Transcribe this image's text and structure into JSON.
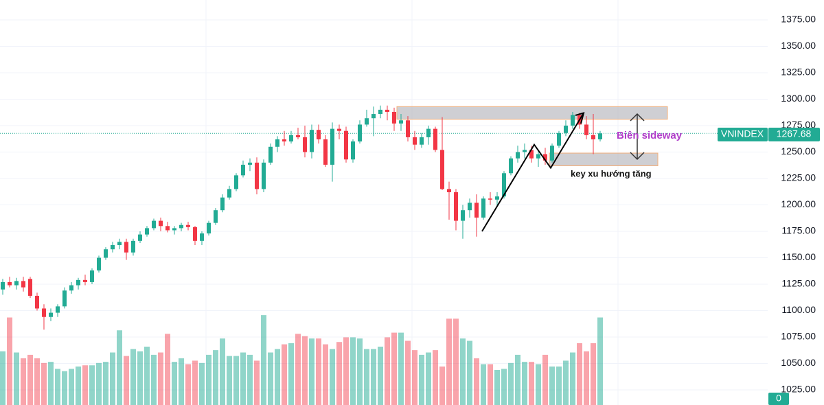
{
  "chart_data": {
    "type": "candlestick",
    "candles": [
      [
        1120,
        1130,
        1115,
        1127
      ],
      [
        1127,
        1132,
        1122,
        1124
      ],
      [
        1124,
        1131,
        1120,
        1128
      ],
      [
        1128,
        1132,
        1118,
        1122
      ],
      [
        1130,
        1132,
        1112,
        1114
      ],
      [
        1114,
        1117,
        1100,
        1102
      ],
      [
        1102,
        1106,
        1082,
        1094
      ],
      [
        1094,
        1102,
        1090,
        1098
      ],
      [
        1098,
        1106,
        1094,
        1104
      ],
      [
        1104,
        1122,
        1102,
        1119
      ],
      [
        1119,
        1127,
        1116,
        1124
      ],
      [
        1124,
        1131,
        1120,
        1129
      ],
      [
        1129,
        1134,
        1124,
        1127
      ],
      [
        1127,
        1140,
        1125,
        1138
      ],
      [
        1138,
        1152,
        1136,
        1150
      ],
      [
        1150,
        1160,
        1148,
        1158
      ],
      [
        1158,
        1165,
        1155,
        1162
      ],
      [
        1162,
        1168,
        1158,
        1165
      ],
      [
        1165,
        1168,
        1148,
        1155
      ],
      [
        1155,
        1168,
        1152,
        1166
      ],
      [
        1166,
        1175,
        1164,
        1172
      ],
      [
        1172,
        1180,
        1170,
        1178
      ],
      [
        1178,
        1187,
        1176,
        1185
      ],
      [
        1185,
        1188,
        1175,
        1180
      ],
      [
        1180,
        1184,
        1174,
        1176
      ],
      [
        1176,
        1180,
        1172,
        1178
      ],
      [
        1178,
        1183,
        1175,
        1181
      ],
      [
        1181,
        1184,
        1176,
        1179
      ],
      [
        1179,
        1180,
        1162,
        1166
      ],
      [
        1166,
        1175,
        1162,
        1173
      ],
      [
        1173,
        1185,
        1171,
        1183
      ],
      [
        1183,
        1197,
        1181,
        1195
      ],
      [
        1195,
        1210,
        1193,
        1207
      ],
      [
        1207,
        1218,
        1205,
        1215
      ],
      [
        1215,
        1230,
        1213,
        1228
      ],
      [
        1228,
        1242,
        1226,
        1238
      ],
      [
        1238,
        1244,
        1232,
        1240
      ],
      [
        1240,
        1245,
        1210,
        1215
      ],
      [
        1215,
        1243,
        1212,
        1240
      ],
      [
        1240,
        1258,
        1238,
        1255
      ],
      [
        1255,
        1265,
        1250,
        1262
      ],
      [
        1262,
        1270,
        1256,
        1260
      ],
      [
        1260,
        1270,
        1258,
        1266
      ],
      [
        1266,
        1273,
        1262,
        1264
      ],
      [
        1264,
        1275,
        1245,
        1250
      ],
      [
        1250,
        1276,
        1244,
        1271
      ],
      [
        1271,
        1276,
        1258,
        1262
      ],
      [
        1262,
        1266,
        1236,
        1238
      ],
      [
        1238,
        1278,
        1222,
        1272
      ],
      [
        1272,
        1276,
        1262,
        1270
      ],
      [
        1270,
        1274,
        1240,
        1243
      ],
      [
        1243,
        1262,
        1240,
        1260
      ],
      [
        1260,
        1280,
        1258,
        1276
      ],
      [
        1276,
        1290,
        1274,
        1282
      ],
      [
        1282,
        1293,
        1265,
        1286
      ],
      [
        1286,
        1294,
        1282,
        1290
      ],
      [
        1290,
        1294,
        1280,
        1288
      ],
      [
        1288,
        1292,
        1270,
        1277
      ],
      [
        1277,
        1286,
        1270,
        1280
      ],
      [
        1280,
        1284,
        1260,
        1264
      ],
      [
        1264,
        1270,
        1252,
        1257
      ],
      [
        1257,
        1268,
        1254,
        1264
      ],
      [
        1264,
        1275,
        1257,
        1272
      ],
      [
        1272,
        1274,
        1250,
        1252
      ],
      [
        1252,
        1283,
        1214,
        1215
      ],
      [
        1215,
        1222,
        1186,
        1212
      ],
      [
        1212,
        1215,
        1176,
        1185
      ],
      [
        1185,
        1200,
        1168,
        1195
      ],
      [
        1195,
        1206,
        1188,
        1202
      ],
      [
        1202,
        1210,
        1170,
        1188
      ],
      [
        1188,
        1208,
        1186,
        1206
      ],
      [
        1206,
        1212,
        1200,
        1205
      ],
      [
        1205,
        1212,
        1198,
        1208
      ],
      [
        1208,
        1232,
        1206,
        1230
      ],
      [
        1230,
        1246,
        1228,
        1244
      ],
      [
        1244,
        1256,
        1240,
        1250
      ],
      [
        1250,
        1258,
        1244,
        1252
      ],
      [
        1252,
        1256,
        1240,
        1244
      ],
      [
        1244,
        1252,
        1236,
        1248
      ],
      [
        1248,
        1254,
        1238,
        1242
      ],
      [
        1242,
        1258,
        1240,
        1256
      ],
      [
        1256,
        1270,
        1254,
        1268
      ],
      [
        1268,
        1280,
        1265,
        1275
      ],
      [
        1275,
        1288,
        1272,
        1285
      ],
      [
        1285,
        1287,
        1272,
        1276
      ],
      [
        1276,
        1284,
        1262,
        1266
      ],
      [
        1266,
        1286,
        1248,
        1262
      ],
      [
        1262,
        1270,
        1260,
        1267.68
      ]
    ],
    "volumes": [
      46,
      75,
      45,
      40,
      43,
      40,
      36,
      37,
      31,
      29,
      31,
      33,
      34,
      34,
      36,
      37,
      45,
      64,
      42,
      48,
      46,
      50,
      43,
      45,
      61,
      37,
      40,
      35,
      38,
      36,
      43,
      47,
      57,
      42,
      42,
      45,
      43,
      38,
      77,
      45,
      48,
      52,
      53,
      61,
      59,
      57,
      57,
      52,
      48,
      54,
      58,
      58,
      57,
      48,
      48,
      50,
      58,
      62,
      62,
      55,
      47,
      43,
      45,
      47,
      33,
      74,
      74,
      57,
      55,
      40,
      35,
      35,
      30,
      31,
      36,
      43,
      37,
      37,
      35,
      43,
      33,
      33,
      38,
      45,
      53,
      46,
      53,
      75
    ],
    "up_color": "#22ab94",
    "down_color": "#f23645",
    "ylim": [
      1025,
      1375
    ],
    "yticks": [
      {
        "value": 1025,
        "label": "1025.00"
      },
      {
        "value": 1050,
        "label": "1050.00"
      },
      {
        "value": 1075,
        "label": "1075.00"
      },
      {
        "value": 1100,
        "label": "1100.00"
      },
      {
        "value": 1125,
        "label": "1125.00"
      },
      {
        "value": 1150,
        "label": "1150.00"
      },
      {
        "value": 1175,
        "label": "1175.00"
      },
      {
        "value": 1200,
        "label": "1200.00"
      },
      {
        "value": 1225,
        "label": "1225.00"
      },
      {
        "value": 1250,
        "label": "1250.00"
      },
      {
        "value": 1275,
        "label": "1275.00"
      },
      {
        "value": 1300,
        "label": "1300.00"
      },
      {
        "value": 1325,
        "label": "1325.00"
      },
      {
        "value": 1350,
        "label": "1350.00"
      },
      {
        "value": 1375,
        "label": "1375.00"
      }
    ],
    "volume_lim": [
      0,
      100
    ],
    "volume_ticks": [
      0
    ],
    "grid": true,
    "last_price": {
      "name": "VNINDEX",
      "value": 1267.68
    },
    "zones": [
      {
        "low": 1281,
        "high": 1293
      },
      {
        "low": 1237,
        "high": 1249
      }
    ],
    "trend_line": [
      1175,
      1257,
      1235,
      1287
    ],
    "annotations": [
      "Biên sideway",
      "key xu hướng tăng"
    ]
  }
}
